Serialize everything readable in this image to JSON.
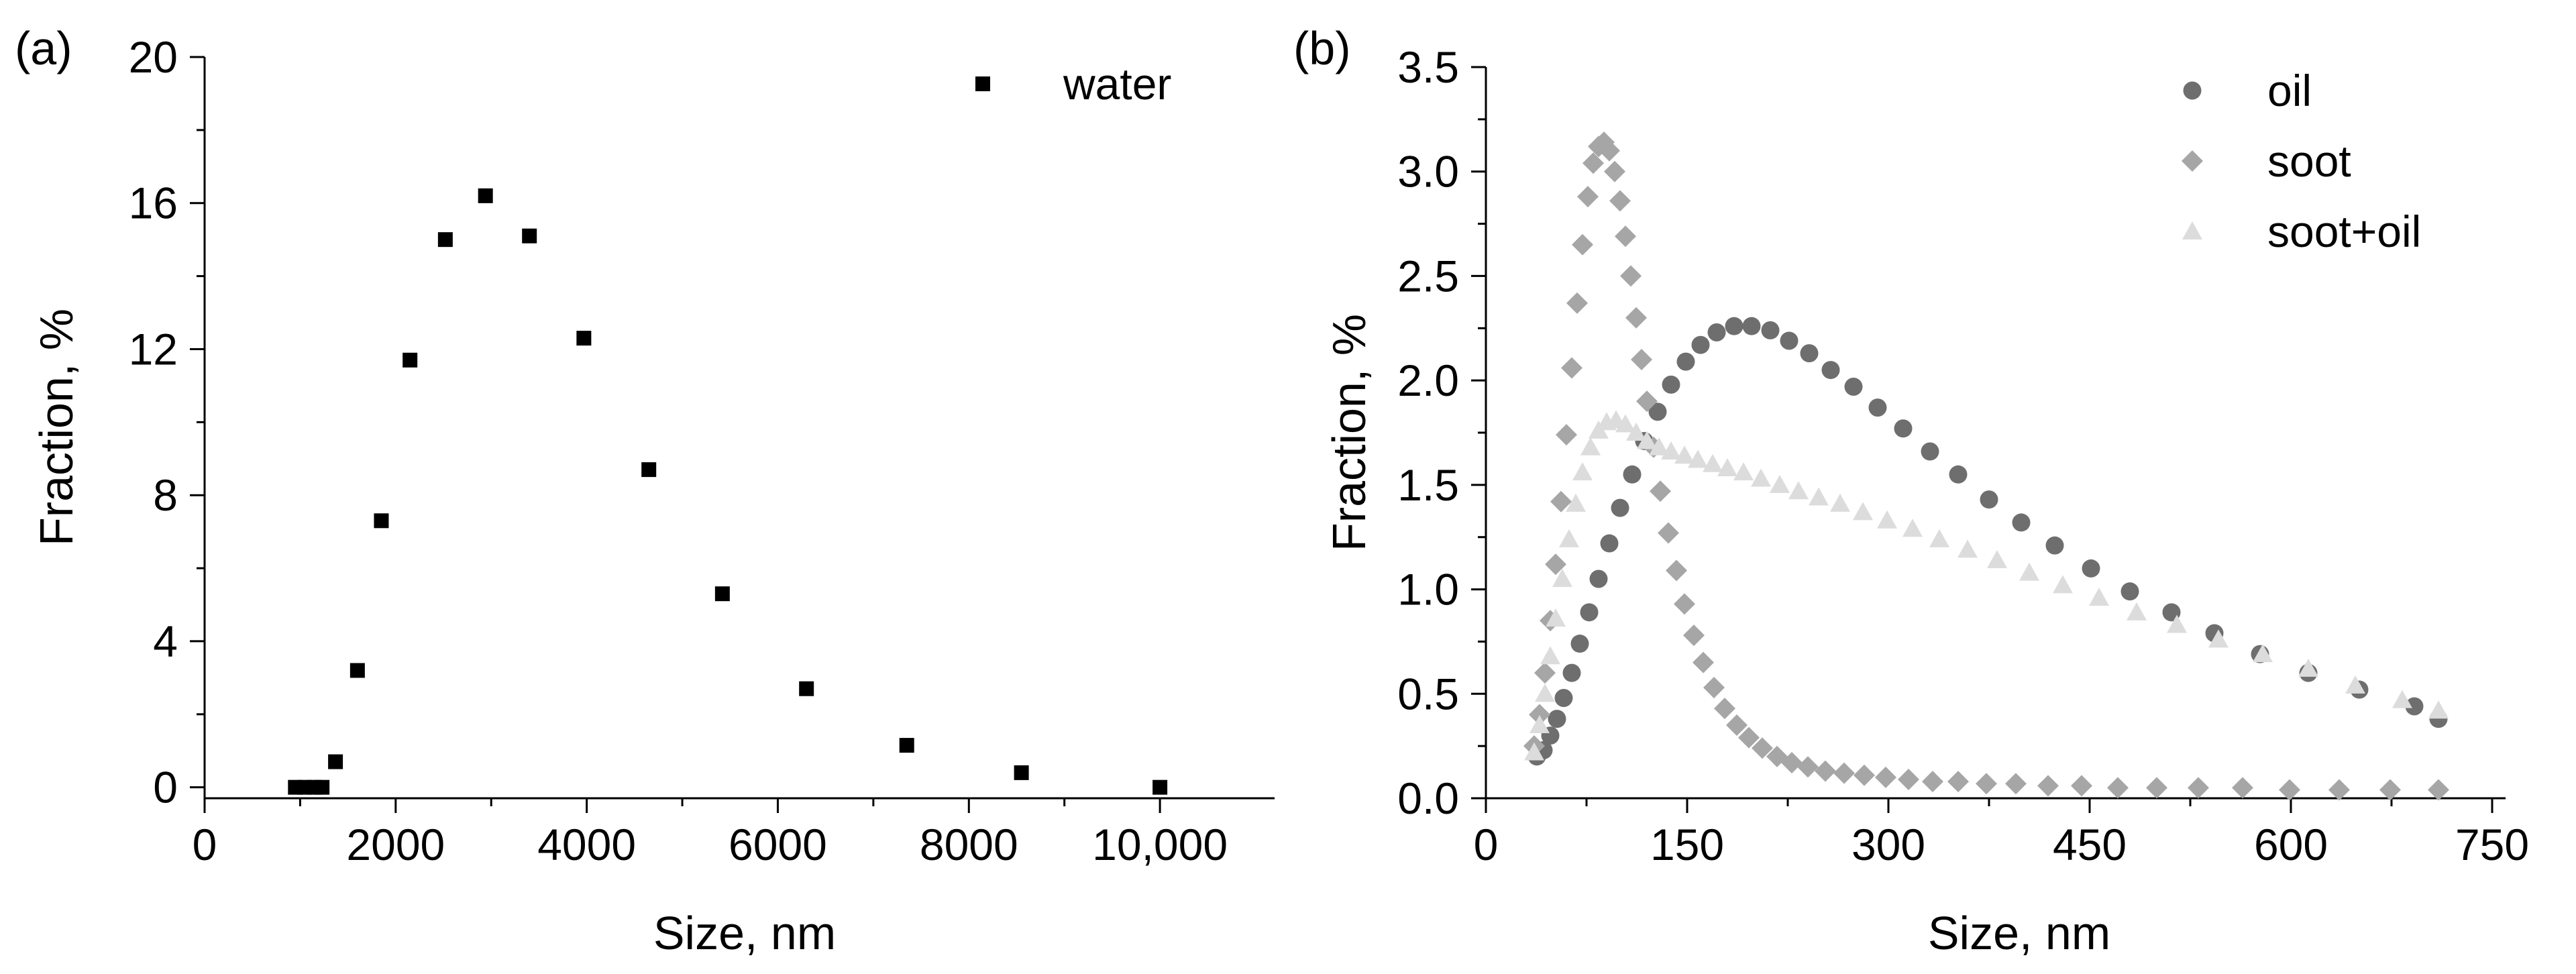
{
  "chart_data": [
    {
      "type": "scatter",
      "panel_label": "(a)",
      "xlabel": "Size, nm",
      "ylabel": "Fraction, %",
      "xlim": [
        0,
        11200
      ],
      "ylim": [
        -0.3,
        20
      ],
      "x_ticks": [
        0,
        2000,
        4000,
        6000,
        8000,
        10000
      ],
      "x_tick_labels": [
        "0",
        "2000",
        "4000",
        "6000",
        "8000",
        "10,000"
      ],
      "y_ticks": [
        0,
        4,
        8,
        12,
        16,
        20
      ],
      "y_tick_labels": [
        "0",
        "4",
        "8",
        "12",
        "16",
        "20"
      ],
      "legend_position": "top-right",
      "series": [
        {
          "name": "water",
          "marker": "square",
          "color": "#000000",
          "x": [
            950,
            1050,
            1150,
            1230,
            1370,
            1600,
            1850,
            2150,
            2520,
            2940,
            3400,
            3970,
            4650,
            5420,
            6300,
            7350,
            8550,
            10000
          ],
          "y": [
            0,
            0,
            0,
            0,
            0.7,
            3.2,
            7.3,
            11.7,
            15.0,
            16.2,
            15.1,
            12.3,
            8.7,
            5.3,
            2.7,
            1.15,
            0.4,
            0
          ]
        }
      ]
    },
    {
      "type": "scatter",
      "panel_label": "(b)",
      "xlabel": "Size, nm",
      "ylabel": "Fraction, %",
      "xlim": [
        0,
        760
      ],
      "ylim": [
        0,
        3.5
      ],
      "x_ticks": [
        0,
        150,
        300,
        450,
        600,
        750
      ],
      "x_tick_labels": [
        "0",
        "150",
        "300",
        "450",
        "600",
        "750"
      ],
      "y_ticks": [
        0,
        0.5,
        1.0,
        1.5,
        2.0,
        2.5,
        3.0,
        3.5
      ],
      "y_tick_labels": [
        "0.0",
        "0.5",
        "1.0",
        "1.5",
        "2.0",
        "2.5",
        "3.0",
        "3.5"
      ],
      "legend_position": "top-right",
      "series": [
        {
          "name": "oil",
          "marker": "circle",
          "color": "#6e6e6e",
          "x": [
            38,
            43,
            48,
            53,
            58,
            64,
            70,
            77,
            84,
            92,
            100,
            109,
            118,
            128,
            138,
            149,
            160,
            172,
            185,
            198,
            212,
            226,
            241,
            257,
            274,
            292,
            311,
            331,
            352,
            375,
            399,
            424,
            451,
            480,
            511,
            543,
            577,
            613,
            651,
            692,
            710
          ],
          "y": [
            0.2,
            0.23,
            0.3,
            0.38,
            0.48,
            0.6,
            0.74,
            0.89,
            1.05,
            1.22,
            1.39,
            1.55,
            1.71,
            1.85,
            1.98,
            2.09,
            2.17,
            2.23,
            2.26,
            2.26,
            2.24,
            2.19,
            2.13,
            2.05,
            1.97,
            1.87,
            1.77,
            1.66,
            1.55,
            1.43,
            1.32,
            1.21,
            1.1,
            0.99,
            0.89,
            0.79,
            0.69,
            0.6,
            0.52,
            0.44,
            0.38
          ]
        },
        {
          "name": "soot",
          "marker": "diamond",
          "color": "#a6a6a6",
          "x": [
            36,
            40,
            44,
            48,
            52,
            56,
            60,
            64,
            68,
            72,
            76,
            80,
            84,
            88,
            92,
            96,
            100,
            104,
            108,
            112,
            116,
            120,
            125,
            130,
            136,
            142,
            148,
            155,
            162,
            170,
            178,
            187,
            196,
            206,
            217,
            228,
            240,
            253,
            267,
            282,
            298,
            315,
            333,
            352,
            373,
            395,
            419,
            444,
            471,
            500,
            531,
            564,
            599,
            636,
            674,
            710
          ],
          "y": [
            0.25,
            0.4,
            0.6,
            0.85,
            1.12,
            1.42,
            1.74,
            2.06,
            2.37,
            2.65,
            2.88,
            3.04,
            3.12,
            3.14,
            3.1,
            3.0,
            2.86,
            2.69,
            2.5,
            2.3,
            2.1,
            1.9,
            1.68,
            1.47,
            1.27,
            1.09,
            0.93,
            0.78,
            0.65,
            0.53,
            0.43,
            0.35,
            0.29,
            0.24,
            0.2,
            0.17,
            0.15,
            0.13,
            0.12,
            0.11,
            0.1,
            0.09,
            0.08,
            0.08,
            0.07,
            0.07,
            0.06,
            0.06,
            0.05,
            0.05,
            0.05,
            0.05,
            0.04,
            0.04,
            0.04,
            0.04
          ]
        },
        {
          "name": "soot+oil",
          "marker": "triangle",
          "color": "#dcdcdc",
          "x": [
            36,
            40,
            44,
            48,
            52,
            57,
            62,
            67,
            72,
            78,
            84,
            90,
            97,
            104,
            112,
            120,
            129,
            138,
            148,
            158,
            169,
            180,
            192,
            205,
            219,
            233,
            248,
            264,
            281,
            299,
            318,
            338,
            359,
            381,
            405,
            430,
            457,
            485,
            515,
            546,
            579,
            613,
            648,
            683,
            710
          ],
          "y": [
            0.22,
            0.35,
            0.5,
            0.68,
            0.86,
            1.05,
            1.24,
            1.41,
            1.56,
            1.68,
            1.76,
            1.8,
            1.81,
            1.79,
            1.75,
            1.71,
            1.68,
            1.66,
            1.64,
            1.62,
            1.6,
            1.58,
            1.56,
            1.53,
            1.5,
            1.47,
            1.44,
            1.41,
            1.37,
            1.33,
            1.29,
            1.24,
            1.19,
            1.14,
            1.08,
            1.02,
            0.96,
            0.89,
            0.83,
            0.76,
            0.69,
            0.62,
            0.54,
            0.47,
            0.42
          ]
        }
      ]
    }
  ]
}
